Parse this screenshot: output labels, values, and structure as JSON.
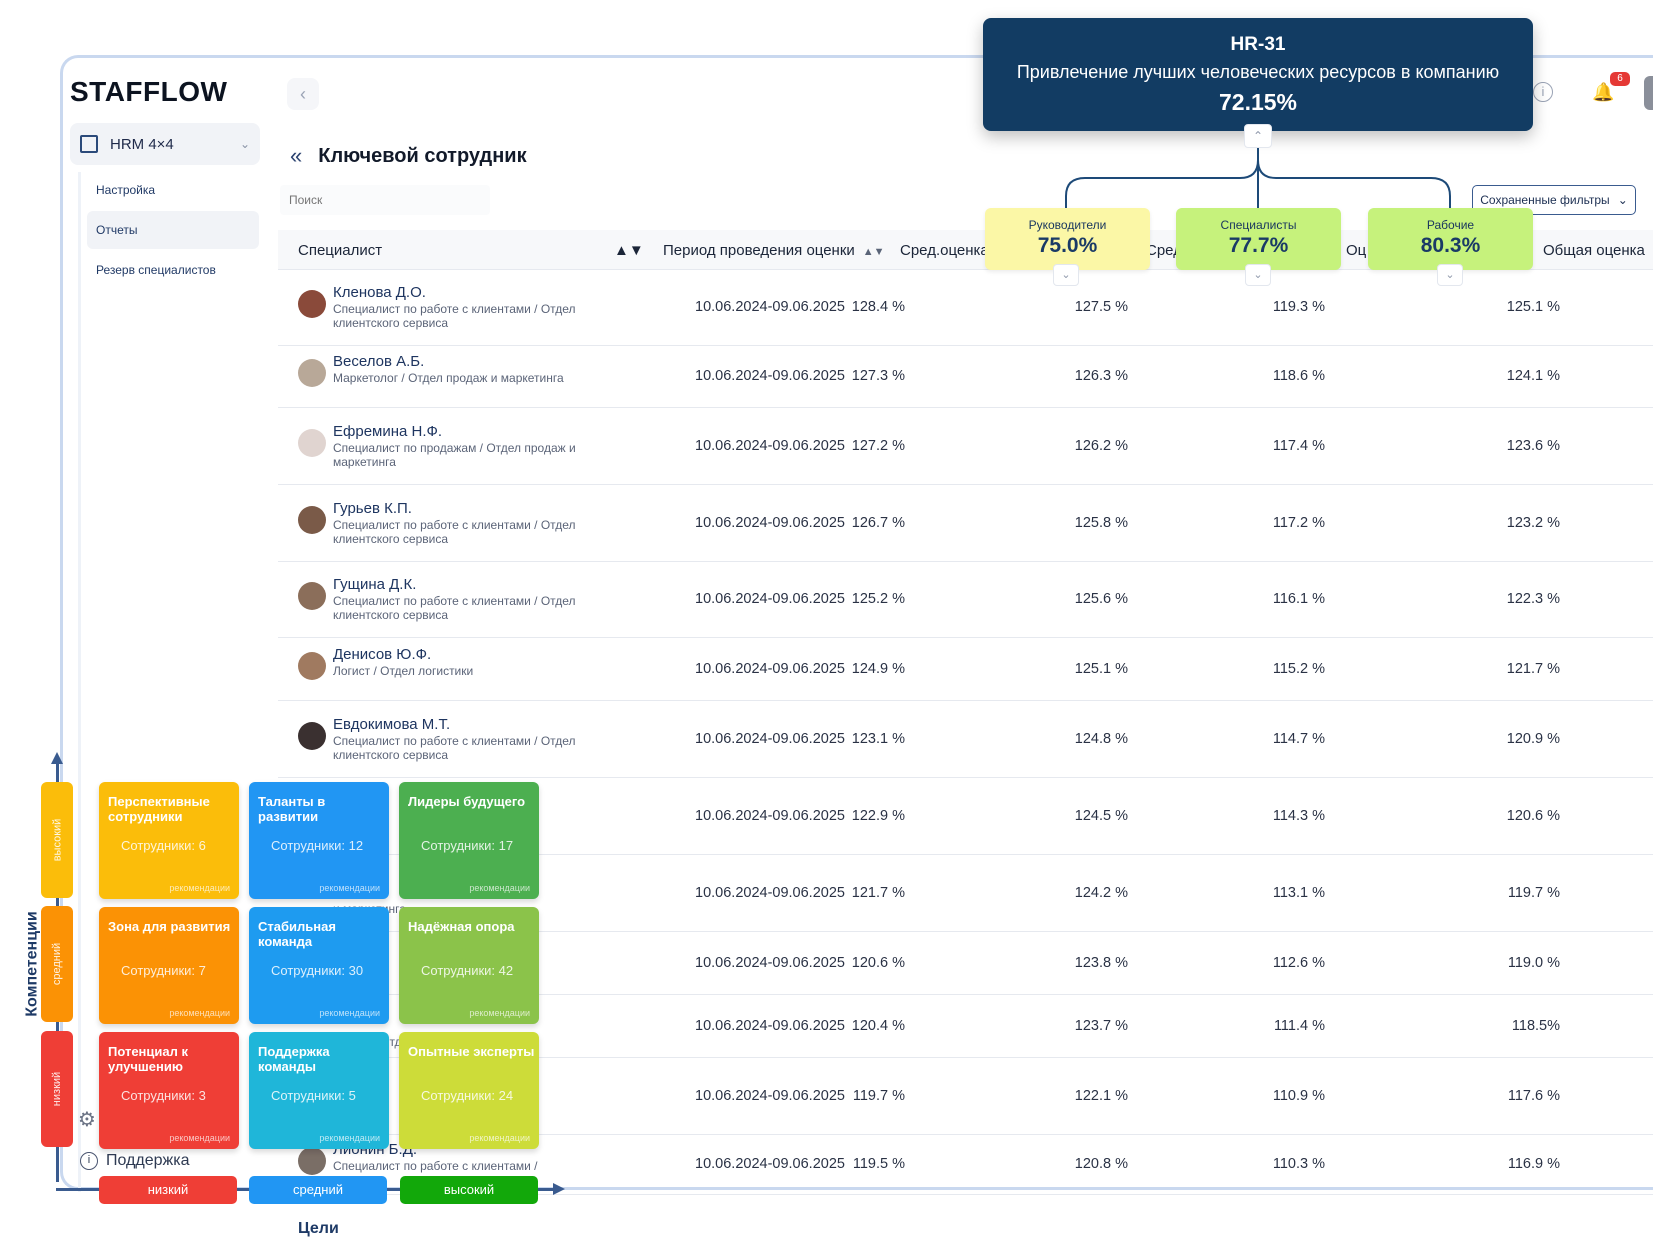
{
  "app": {
    "logo": "STAFFLOW"
  },
  "sidebar": {
    "selector": "HRM 4×4",
    "items": [
      {
        "label": "Настройка",
        "active": false
      },
      {
        "label": "Отчеты",
        "active": true
      },
      {
        "label": "Резерв специалистов",
        "active": false
      }
    ],
    "support": "Поддержка"
  },
  "header": {
    "notifications": "6"
  },
  "page": {
    "title": "Ключевой сотрудник",
    "search_placeholder": "Поиск",
    "saved_filters": "Сохраненные фильтры"
  },
  "goal_popup": {
    "code": "HR-31",
    "description": "Привлечение лучших человеческих ресурсов в компанию",
    "value": "72.15%"
  },
  "kpi_cards": [
    {
      "label": "Руководители",
      "value": "75.0%",
      "color": "#fbf7a6"
    },
    {
      "label": "Специалисты",
      "value": "77.7%",
      "color": "#c6f27c"
    },
    {
      "label": "Рабочие",
      "value": "80.3%",
      "color": "#c6f27c"
    }
  ],
  "table": {
    "columns": {
      "specialist": "Специалист",
      "period": "Период проведения оценки",
      "avg1": "Сред.оценка",
      "avg2": "Сред",
      "avg3": "Оц",
      "total": "Общая оценка"
    },
    "rows": [
      {
        "name": "Кленова Д.О.",
        "job": "Специалист по работе с клиентами / Отдел клиентского сервиса",
        "period": "10.06.2024-09.06.2025",
        "a": "128.4 %",
        "b": "127.5 %",
        "c": "119.3 %",
        "t": "125.1 %"
      },
      {
        "name": "Веселов А.Б.",
        "job": "Маркетолог / Отдел продаж и маркетинга",
        "period": "10.06.2024-09.06.2025",
        "a": "127.3 %",
        "b": "126.3 %",
        "c": "118.6 %",
        "t": "124.1 %"
      },
      {
        "name": "Ефремина Н.Ф.",
        "job": "Специалист по продажам / Отдел продаж и маркетинга",
        "period": "10.06.2024-09.06.2025",
        "a": "127.2 %",
        "b": "126.2 %",
        "c": "117.4 %",
        "t": "123.6 %"
      },
      {
        "name": "Гурьев К.П.",
        "job": "Специалист по работе с клиентами / Отдел клиентского сервиса",
        "period": "10.06.2024-09.06.2025",
        "a": "126.7 %",
        "b": "125.8 %",
        "c": "117.2 %",
        "t": "123.2 %"
      },
      {
        "name": "Гущина Д.К.",
        "job": "Специалист по работе с клиентами / Отдел клиентского сервиса",
        "period": "10.06.2024-09.06.2025",
        "a": "125.2 %",
        "b": "125.6 %",
        "c": "116.1 %",
        "t": "122.3 %"
      },
      {
        "name": "Денисов Ю.Ф.",
        "job": "Логист / Отдел логистики",
        "period": "10.06.2024-09.06.2025",
        "a": "124.9 %",
        "b": "125.1 %",
        "c": "115.2 %",
        "t": "121.7 %"
      },
      {
        "name": "Евдокимова М.Т.",
        "job": "Специалист по работе с клиентами / Отдел клиентского сервиса",
        "period": "10.06.2024-09.06.2025",
        "a": "123.1 %",
        "b": "124.8 %",
        "c": "114.7 %",
        "t": "120.9 %"
      },
      {
        "name": "",
        "job": "",
        "period": "10.06.2024-09.06.2025",
        "a": "122.9 %",
        "b": "124.5 %",
        "c": "114.3 %",
        "t": "120.6 %"
      },
      {
        "name": "",
        "job": "и маркетинга",
        "period": "10.06.2024-09.06.2025",
        "a": "121.7 %",
        "b": "124.2 %",
        "c": "113.1 %",
        "t": "119.7 %"
      },
      {
        "name": "",
        "job": "",
        "period": "10.06.2024-09.06.2025",
        "a": "120.6 %",
        "b": "123.8 %",
        "c": "112.6 %",
        "t": "119.0 %"
      },
      {
        "name": "",
        "job": "Логист / Отдел логистики",
        "period": "10.06.2024-09.06.2025",
        "a": "120.4 %",
        "b": "123.7 %",
        "c": "111.4 %",
        "t": "118.5%"
      },
      {
        "name": "",
        "job": "",
        "period": "10.06.2024-09.06.2025",
        "a": "119.7 %",
        "b": "122.1 %",
        "c": "110.9 %",
        "t": "117.6 %"
      },
      {
        "name": "Лионин Б.Д.",
        "job": "Специалист по работе с клиентами /",
        "period": "10.06.2024-09.06.2025",
        "a": "119.5 %",
        "b": "120.8 %",
        "c": "110.3 %",
        "t": "116.9 %"
      }
    ]
  },
  "ninebox": {
    "y_axis_title": "Компетенции",
    "x_axis_title": "Цели",
    "y_levels": [
      {
        "label": "высокий",
        "color": "#fbbd0a"
      },
      {
        "label": "средний",
        "color": "#fb9205"
      },
      {
        "label": "низкий",
        "color": "#ef3e36"
      }
    ],
    "x_levels": [
      {
        "label": "низкий",
        "color": "#ef3e36"
      },
      {
        "label": "средний",
        "color": "#2196f3"
      },
      {
        "label": "высокий",
        "color": "#12a80a"
      }
    ],
    "boxes": [
      {
        "title": "Перспективные сотрудники",
        "count": "Сотрудники: 6",
        "rec": "рекомендации",
        "color": "#fbbd0a"
      },
      {
        "title": "Таланты в развитии",
        "count": "Сотрудники: 12",
        "rec": "рекомендации",
        "color": "#2196f3"
      },
      {
        "title": "Лидеры будущего",
        "count": "Сотрудники: 17",
        "rec": "рекомендации",
        "color": "#4caf50"
      },
      {
        "title": "Зона для развития",
        "count": "Сотрудники: 7",
        "rec": "рекомендации",
        "color": "#fb9205"
      },
      {
        "title": "Стабильная команда",
        "count": "Сотрудники: 30",
        "rec": "рекомендации",
        "color": "#1e9bf0"
      },
      {
        "title": "Надёжная опора",
        "count": "Сотрудники: 42",
        "rec": "рекомендации",
        "color": "#8bc34a"
      },
      {
        "title": "Потенциал к улучшению",
        "count": "Сотрудники: 3",
        "rec": "рекомендации",
        "color": "#ef3e36"
      },
      {
        "title": "Поддержка команды",
        "count": "Сотрудники: 5",
        "rec": "рекомендации",
        "color": "#1fb6d9"
      },
      {
        "title": "Опытные эксперты",
        "count": "Сотрудники: 24",
        "rec": "рекомендации",
        "color": "#cddc39"
      }
    ]
  }
}
